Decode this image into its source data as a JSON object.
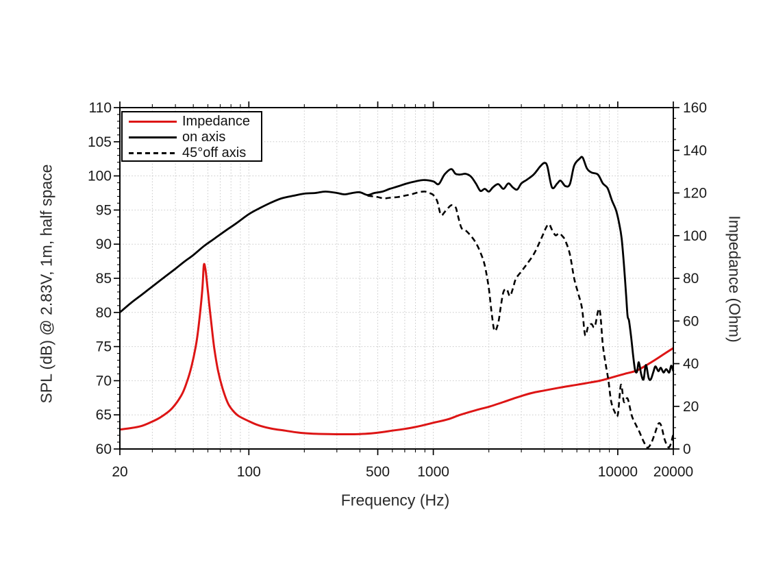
{
  "chart_data": {
    "type": "line",
    "title": "",
    "xlabel": "Frequency (Hz)",
    "ylabel_left": "SPL (dB) @ 2.83V, 1m, half space",
    "ylabel_right": "Impedance (Ohm)",
    "x_scale": "log",
    "xlim": [
      20,
      20000
    ],
    "ylim_left": [
      60,
      110
    ],
    "ylim_right": [
      0,
      160
    ],
    "x_ticks": [
      20,
      100,
      500,
      1000,
      10000,
      20000
    ],
    "y_ticks_left": [
      60,
      65,
      70,
      75,
      80,
      85,
      90,
      95,
      100,
      105,
      110
    ],
    "y_ticks_right": [
      0,
      20,
      40,
      60,
      80,
      100,
      120,
      140,
      160
    ],
    "grid": true,
    "legend_position": "top-left",
    "colors": {
      "impedance": "#dd1515",
      "spl": "#000000",
      "grid": "#c9c9c9",
      "text": "#1a1a1a",
      "background": "#ffffff"
    },
    "legend": [
      {
        "label": "Impedance",
        "color": "#dd1515",
        "style": "solid"
      },
      {
        "label": "on axis",
        "color": "#000000",
        "style": "solid"
      },
      {
        "label": "45°off axis",
        "color": "#000000",
        "style": "dashed"
      }
    ],
    "series": [
      {
        "name": "Impedance",
        "axis": "right",
        "unit": "Ohm",
        "color": "#dd1515",
        "style": "solid",
        "points": [
          [
            20,
            9.1
          ],
          [
            23,
            9.8
          ],
          [
            26,
            10.7
          ],
          [
            29,
            12.3
          ],
          [
            33,
            14.7
          ],
          [
            38,
            18.7
          ],
          [
            43,
            25
          ],
          [
            46,
            31
          ],
          [
            49,
            39
          ],
          [
            52,
            50
          ],
          [
            54,
            61
          ],
          [
            56,
            75
          ],
          [
            57,
            86
          ],
          [
            58,
            85
          ],
          [
            59,
            80
          ],
          [
            61,
            68
          ],
          [
            63,
            57
          ],
          [
            65,
            47
          ],
          [
            68,
            37
          ],
          [
            72,
            28.5
          ],
          [
            77,
            21.5
          ],
          [
            82,
            18
          ],
          [
            88,
            15.5
          ],
          [
            98,
            13.4
          ],
          [
            112,
            11.2
          ],
          [
            132,
            9.6
          ],
          [
            157,
            8.6
          ],
          [
            185,
            7.7
          ],
          [
            220,
            7.2
          ],
          [
            270,
            7
          ],
          [
            330,
            6.9
          ],
          [
            400,
            7
          ],
          [
            460,
            7.3
          ],
          [
            530,
            7.9
          ],
          [
            600,
            8.6
          ],
          [
            700,
            9.4
          ],
          [
            800,
            10.3
          ],
          [
            920,
            11.5
          ],
          [
            1000,
            12.3
          ],
          [
            1200,
            13.9
          ],
          [
            1400,
            16
          ],
          [
            1700,
            18.2
          ],
          [
            2000,
            19.8
          ],
          [
            2400,
            22
          ],
          [
            2800,
            24
          ],
          [
            3400,
            26.2
          ],
          [
            4000,
            27.4
          ],
          [
            4800,
            28.7
          ],
          [
            5600,
            29.7
          ],
          [
            6300,
            30.4
          ],
          [
            7000,
            31.1
          ],
          [
            8000,
            32
          ],
          [
            9000,
            33.2
          ],
          [
            10000,
            34.3
          ],
          [
            11000,
            35.3
          ],
          [
            12600,
            36.7
          ],
          [
            14000,
            38.8
          ],
          [
            16300,
            42.3
          ],
          [
            18000,
            44.8
          ],
          [
            20000,
            47.3
          ]
        ]
      },
      {
        "name": "on axis",
        "axis": "left",
        "unit": "dB",
        "color": "#000000",
        "style": "solid",
        "points": [
          [
            20,
            80
          ],
          [
            23,
            81.4
          ],
          [
            26,
            82.5
          ],
          [
            30,
            83.8
          ],
          [
            35,
            85.2
          ],
          [
            40,
            86.4
          ],
          [
            45,
            87.5
          ],
          [
            50,
            88.4
          ],
          [
            57,
            89.7
          ],
          [
            65,
            90.8
          ],
          [
            75,
            92
          ],
          [
            85,
            93
          ],
          [
            100,
            94.4
          ],
          [
            115,
            95.3
          ],
          [
            130,
            96
          ],
          [
            150,
            96.7
          ],
          [
            175,
            97.1
          ],
          [
            200,
            97.4
          ],
          [
            230,
            97.5
          ],
          [
            260,
            97.7
          ],
          [
            300,
            97.5
          ],
          [
            330,
            97.3
          ],
          [
            365,
            97.5
          ],
          [
            400,
            97.6
          ],
          [
            440,
            97.2
          ],
          [
            480,
            97.5
          ],
          [
            530,
            97.7
          ],
          [
            580,
            98.1
          ],
          [
            650,
            98.5
          ],
          [
            720,
            98.9
          ],
          [
            800,
            99.2
          ],
          [
            890,
            99.4
          ],
          [
            1000,
            99.2
          ],
          [
            1070,
            98.8
          ],
          [
            1150,
            100.2
          ],
          [
            1250,
            101
          ],
          [
            1320,
            100.3
          ],
          [
            1400,
            100.2
          ],
          [
            1500,
            100.3
          ],
          [
            1600,
            99.9
          ],
          [
            1700,
            98.9
          ],
          [
            1800,
            97.8
          ],
          [
            1900,
            98.1
          ],
          [
            2000,
            97.7
          ],
          [
            2100,
            98.3
          ],
          [
            2250,
            98.8
          ],
          [
            2400,
            98.1
          ],
          [
            2550,
            98.9
          ],
          [
            2700,
            98.3
          ],
          [
            2850,
            98
          ],
          [
            3000,
            98.9
          ],
          [
            3200,
            99.4
          ],
          [
            3500,
            100.2
          ],
          [
            3800,
            101.4
          ],
          [
            4000,
            101.9
          ],
          [
            4150,
            101.4
          ],
          [
            4400,
            98.3
          ],
          [
            4700,
            98.9
          ],
          [
            4900,
            99.3
          ],
          [
            5200,
            98.5
          ],
          [
            5500,
            98.8
          ],
          [
            5800,
            101.5
          ],
          [
            6200,
            102.5
          ],
          [
            6450,
            102.7
          ],
          [
            6800,
            101.1
          ],
          [
            7200,
            100.5
          ],
          [
            7800,
            100.2
          ],
          [
            8300,
            98.9
          ],
          [
            8800,
            98.2
          ],
          [
            9300,
            96.4
          ],
          [
            9800,
            94.9
          ],
          [
            10200,
            92.9
          ],
          [
            10500,
            90.8
          ],
          [
            10800,
            87
          ],
          [
            11100,
            82.5
          ],
          [
            11300,
            79.5
          ],
          [
            11500,
            78.8
          ],
          [
            11800,
            76.5
          ],
          [
            12100,
            73.8
          ],
          [
            12400,
            71.6
          ],
          [
            12700,
            71.3
          ],
          [
            13000,
            72.7
          ],
          [
            13400,
            70.9
          ],
          [
            13800,
            70.2
          ],
          [
            14200,
            72.3
          ],
          [
            14700,
            70.4
          ],
          [
            15100,
            70.2
          ],
          [
            15600,
            71.3
          ],
          [
            16000,
            72.1
          ],
          [
            16600,
            71.4
          ],
          [
            17100,
            71.9
          ],
          [
            17700,
            71.2
          ],
          [
            18300,
            71.7
          ],
          [
            19000,
            71.2
          ],
          [
            19500,
            72.2
          ],
          [
            20000,
            71.4
          ]
        ]
      },
      {
        "name": "45°off axis",
        "axis": "left",
        "unit": "dB",
        "color": "#000000",
        "style": "dashed",
        "points": [
          [
            440,
            97.1
          ],
          [
            470,
            97
          ],
          [
            500,
            96.9
          ],
          [
            540,
            96.7
          ],
          [
            580,
            96.8
          ],
          [
            640,
            96.9
          ],
          [
            700,
            97.1
          ],
          [
            760,
            97.3
          ],
          [
            830,
            97.6
          ],
          [
            900,
            97.7
          ],
          [
            950,
            97.5
          ],
          [
            1000,
            97.2
          ],
          [
            1050,
            96.3
          ],
          [
            1100,
            94.3
          ],
          [
            1160,
            94.8
          ],
          [
            1250,
            95.7
          ],
          [
            1320,
            95.4
          ],
          [
            1350,
            94.5
          ],
          [
            1420,
            92.4
          ],
          [
            1500,
            92
          ],
          [
            1600,
            91.2
          ],
          [
            1700,
            90.2
          ],
          [
            1800,
            88.8
          ],
          [
            1900,
            86.9
          ],
          [
            2000,
            83.5
          ],
          [
            2080,
            79.5
          ],
          [
            2150,
            77.3
          ],
          [
            2250,
            78.5
          ],
          [
            2320,
            80.8
          ],
          [
            2400,
            83
          ],
          [
            2500,
            83.4
          ],
          [
            2600,
            82.4
          ],
          [
            2700,
            83.5
          ],
          [
            2800,
            84.9
          ],
          [
            3000,
            86
          ],
          [
            3200,
            87
          ],
          [
            3500,
            88.5
          ],
          [
            3800,
            90.5
          ],
          [
            4100,
            92.5
          ],
          [
            4250,
            92.9
          ],
          [
            4400,
            92.1
          ],
          [
            4600,
            91.3
          ],
          [
            4800,
            91.6
          ],
          [
            5000,
            91.2
          ],
          [
            5200,
            90.5
          ],
          [
            5500,
            88.5
          ],
          [
            5800,
            85
          ],
          [
            6100,
            82.8
          ],
          [
            6400,
            80.6
          ],
          [
            6650,
            76.7
          ],
          [
            6900,
            77.9
          ],
          [
            7200,
            78.3
          ],
          [
            7500,
            77.9
          ],
          [
            7950,
            80.5
          ],
          [
            8300,
            75.2
          ],
          [
            8600,
            72.4
          ],
          [
            8900,
            70
          ],
          [
            9200,
            67
          ],
          [
            9600,
            65.5
          ],
          [
            10000,
            65
          ],
          [
            10400,
            69.4
          ],
          [
            10800,
            66.9
          ],
          [
            11300,
            67.4
          ],
          [
            11900,
            64.9
          ],
          [
            12500,
            63.6
          ],
          [
            13100,
            62.5
          ],
          [
            13800,
            61.1
          ],
          [
            14500,
            60.2
          ],
          [
            15200,
            60.9
          ],
          [
            15900,
            62.3
          ],
          [
            16600,
            63.7
          ],
          [
            17200,
            63.4
          ],
          [
            17900,
            61.5
          ],
          [
            18700,
            60.3
          ],
          [
            19300,
            60.6
          ],
          [
            20000,
            62.2
          ]
        ]
      }
    ]
  }
}
